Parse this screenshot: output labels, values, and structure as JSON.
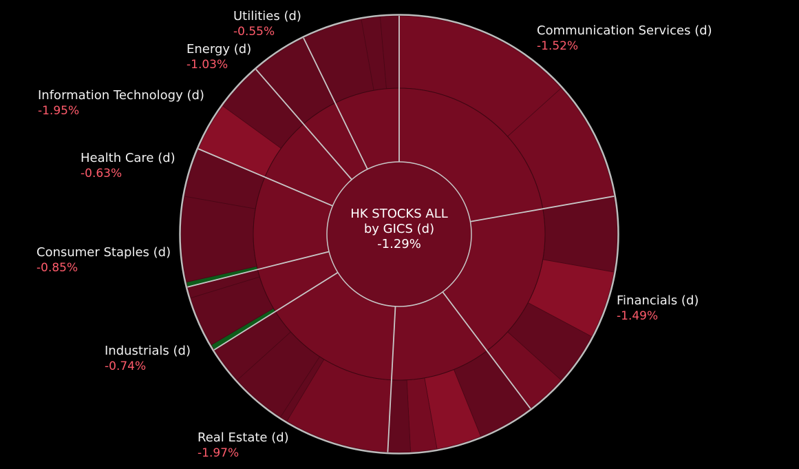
{
  "colors": {
    "background": "#000000",
    "negative_text": "#ff5b6b",
    "center_fill": "#6e0a20",
    "separator": "#c8c8c8",
    "neg_dark": "#62091e",
    "neg_mid": "#760b22",
    "neg_light": "#8a0f27",
    "positive": "#0d5c1a"
  },
  "center": {
    "line1": "HK STOCKS ALL",
    "line2": "by GICS (d)",
    "value": "-1.29%"
  },
  "chart_data": {
    "type": "sunburst",
    "title": "HK STOCKS ALL by GICS (d)",
    "total_change_pct": -1.29,
    "sectors": [
      {
        "name": "Communication Services (d)",
        "change_pct": -1.52,
        "start_deg": 0,
        "end_deg": 80,
        "sub": [
          {
            "end": 48,
            "tone": "mid"
          },
          {
            "end": 80,
            "tone": "mid"
          }
        ]
      },
      {
        "name": "Financials (d)",
        "change_pct": -1.49,
        "start_deg": 80,
        "end_deg": 143,
        "sub": [
          {
            "end": 100,
            "tone": "dark"
          },
          {
            "end": 118,
            "tone": "light"
          },
          {
            "end": 132,
            "tone": "dark"
          },
          {
            "end": 143,
            "tone": "mid"
          }
        ]
      },
      {
        "name": "Real Estate (d)",
        "change_pct": -1.97,
        "start_deg": 143,
        "end_deg": 183,
        "sub": [
          {
            "end": 158,
            "tone": "dark"
          },
          {
            "end": 170,
            "tone": "light"
          },
          {
            "end": 177,
            "tone": "mid"
          },
          {
            "end": 183,
            "tone": "dark"
          }
        ]
      },
      {
        "name": "Industrials (d)",
        "change_pct": -0.74,
        "start_deg": 183,
        "end_deg": 238,
        "sub": [
          {
            "end": 211,
            "tone": "mid"
          },
          {
            "end": 213,
            "tone": "dark"
          },
          {
            "end": 228,
            "tone": "dark"
          },
          {
            "end": 238,
            "tone": "dark"
          }
        ]
      },
      {
        "name": "Consumer Staples (d)",
        "change_pct": -0.85,
        "start_deg": 238,
        "end_deg": 256,
        "sub": [
          {
            "end": 239.5,
            "tone": "positive"
          },
          {
            "end": 253,
            "tone": "dark"
          },
          {
            "end": 256,
            "tone": "dark"
          }
        ]
      },
      {
        "name": "Health Care (d)",
        "change_pct": -0.63,
        "start_deg": 256,
        "end_deg": 293,
        "sub": [
          {
            "end": 257.3,
            "tone": "positive"
          },
          {
            "end": 280,
            "tone": "dark"
          },
          {
            "end": 293,
            "tone": "dark"
          }
        ]
      },
      {
        "name": "Information Technology (d)",
        "change_pct": -1.95,
        "start_deg": 293,
        "end_deg": 319,
        "sub": [
          {
            "end": 306,
            "tone": "light"
          },
          {
            "end": 319,
            "tone": "dark"
          }
        ]
      },
      {
        "name": "Energy (d)",
        "change_pct": -1.03,
        "start_deg": 319,
        "end_deg": 334,
        "sub": [
          {
            "end": 334,
            "tone": "dark"
          }
        ]
      },
      {
        "name": "Utilities (d)",
        "change_pct": -0.55,
        "start_deg": 334,
        "end_deg": 360,
        "sub": [
          {
            "end": 350,
            "tone": "dark"
          },
          {
            "end": 355,
            "tone": "dark"
          },
          {
            "end": 360,
            "tone": "dark"
          }
        ]
      }
    ]
  },
  "labels": [
    {
      "sector": "Communication Services (d)",
      "name": "Communication Services (d)",
      "value": "-1.52%"
    },
    {
      "sector": "Financials (d)",
      "name": "Financials (d)",
      "value": "-1.49%"
    },
    {
      "sector": "Real Estate (d)",
      "name": "Real Estate (d)",
      "value": "-1.97%"
    },
    {
      "sector": "Industrials (d)",
      "name": "Industrials (d)",
      "value": "-0.74%"
    },
    {
      "sector": "Consumer Staples (d)",
      "name": "Consumer Staples (d)",
      "value": "-0.85%"
    },
    {
      "sector": "Health Care (d)",
      "name": "Health Care (d)",
      "value": "-0.63%"
    },
    {
      "sector": "Information Technology (d)",
      "name": "Information Technology (d)",
      "value": "-1.95%"
    },
    {
      "sector": "Energy (d)",
      "name": "Energy (d)",
      "value": "-1.03%"
    },
    {
      "sector": "Utilities (d)",
      "name": "Utilities (d)",
      "value": "-0.55%"
    }
  ]
}
